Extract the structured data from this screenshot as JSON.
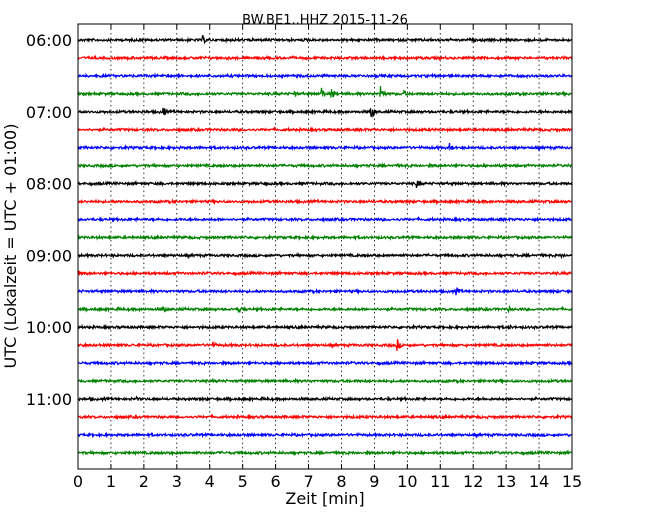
{
  "chart_data": {
    "type": "line",
    "title": "BW.BE1..HHZ 2015-11-26",
    "xlabel": "Zeit  [min]",
    "ylabel": "UTC (Lokalzeit = UTC + 01:00)",
    "xlim": [
      0,
      15
    ],
    "x_ticks": [
      "0",
      "1",
      "2",
      "3",
      "4",
      "5",
      "6",
      "7",
      "8",
      "9",
      "10",
      "11",
      "12",
      "13",
      "14",
      "15"
    ],
    "y_ticks": [
      "06:00",
      "07:00",
      "08:00",
      "09:00",
      "10:00",
      "11:00"
    ],
    "y_ticks_minutes": [
      360,
      420,
      480,
      540,
      600,
      660
    ],
    "trace_interval_min": 15,
    "trace_start_minutes": [
      360,
      375,
      390,
      405,
      420,
      435,
      450,
      465,
      480,
      495,
      510,
      525,
      540,
      555,
      570,
      585,
      600,
      615,
      630,
      645,
      660,
      675,
      690,
      705
    ],
    "colors_cycle": [
      "#000000",
      "#ff0000",
      "#0000ff",
      "#008000"
    ],
    "grid": {
      "x": true,
      "y": false,
      "style": "dotted"
    },
    "events": [
      {
        "trace": 0,
        "t": 3.8,
        "amp": 0.5
      },
      {
        "trace": 3,
        "t": 6.6,
        "amp": 0.35
      },
      {
        "trace": 3,
        "t": 7.4,
        "amp": 0.8
      },
      {
        "trace": 3,
        "t": 7.7,
        "amp": 0.7
      },
      {
        "trace": 3,
        "t": 9.2,
        "amp": 0.9
      },
      {
        "trace": 3,
        "t": 9.9,
        "amp": 0.4
      },
      {
        "trace": 4,
        "t": 2.6,
        "amp": 0.6
      },
      {
        "trace": 4,
        "t": 8.9,
        "amp": 0.9
      },
      {
        "trace": 6,
        "t": 11.3,
        "amp": 0.55
      },
      {
        "trace": 8,
        "t": 5.7,
        "amp": 0.25
      },
      {
        "trace": 8,
        "t": 10.3,
        "amp": 0.55
      },
      {
        "trace": 12,
        "t": 14.7,
        "amp": 0.35
      },
      {
        "trace": 14,
        "t": 11.5,
        "amp": 0.5
      },
      {
        "trace": 15,
        "t": 2.6,
        "amp": 0.5
      },
      {
        "trace": 15,
        "t": 4.9,
        "amp": 0.4
      },
      {
        "trace": 15,
        "t": 13.1,
        "amp": 0.3
      },
      {
        "trace": 16,
        "t": 13.1,
        "amp": 0.3
      },
      {
        "trace": 17,
        "t": 4.1,
        "amp": 0.45
      },
      {
        "trace": 17,
        "t": 9.7,
        "amp": 0.7
      },
      {
        "trace": 20,
        "t": 1.8,
        "amp": 0.25
      }
    ]
  }
}
